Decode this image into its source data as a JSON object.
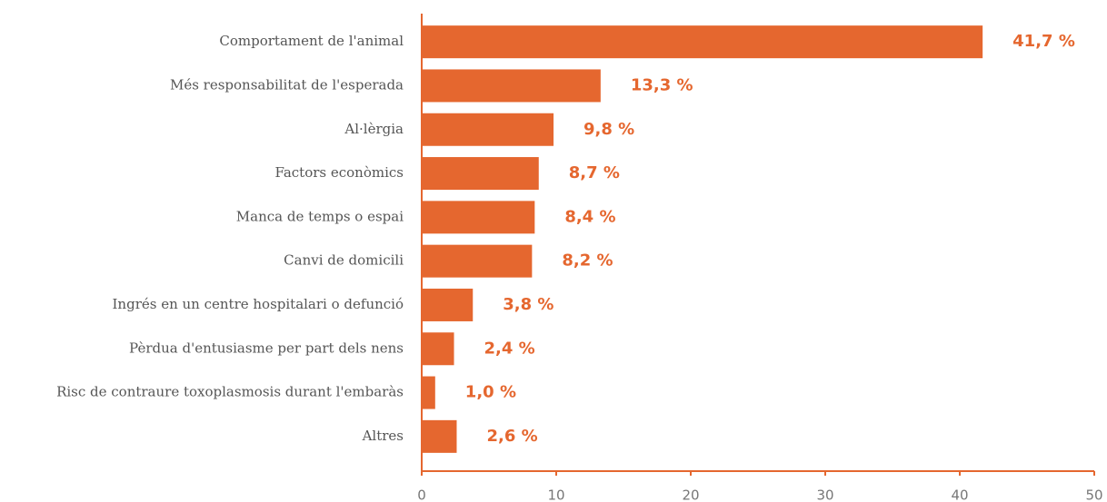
{
  "chart_data": {
    "type": "bar",
    "orientation": "horizontal",
    "categories": [
      "Comportament de l'animal",
      "Més responsabilitat de l'esperada",
      "Al·lèrgia",
      "Factors econòmics",
      "Manca de temps o espai",
      "Canvi de domicili",
      "Ingrés en un centre hospitalari o defunció",
      "Pèrdua d'entusiasme per part dels nens",
      "Risc de contraure toxoplasmosis durant l'embaràs",
      "Altres"
    ],
    "values": [
      41.7,
      13.3,
      9.8,
      8.7,
      8.4,
      8.2,
      3.8,
      2.4,
      1.0,
      2.6
    ],
    "value_labels": [
      "41,7 %",
      "13,3 %",
      "9,8 %",
      "8,7 %",
      "8,4 %",
      "8,2 %",
      "3,8 %",
      "2,4 %",
      "1,0 %",
      "2,6 %"
    ],
    "color": "#e5672f",
    "xlim": [
      0,
      50
    ],
    "xticks": [
      0,
      10,
      20,
      30,
      40,
      50
    ],
    "grid": false
  }
}
